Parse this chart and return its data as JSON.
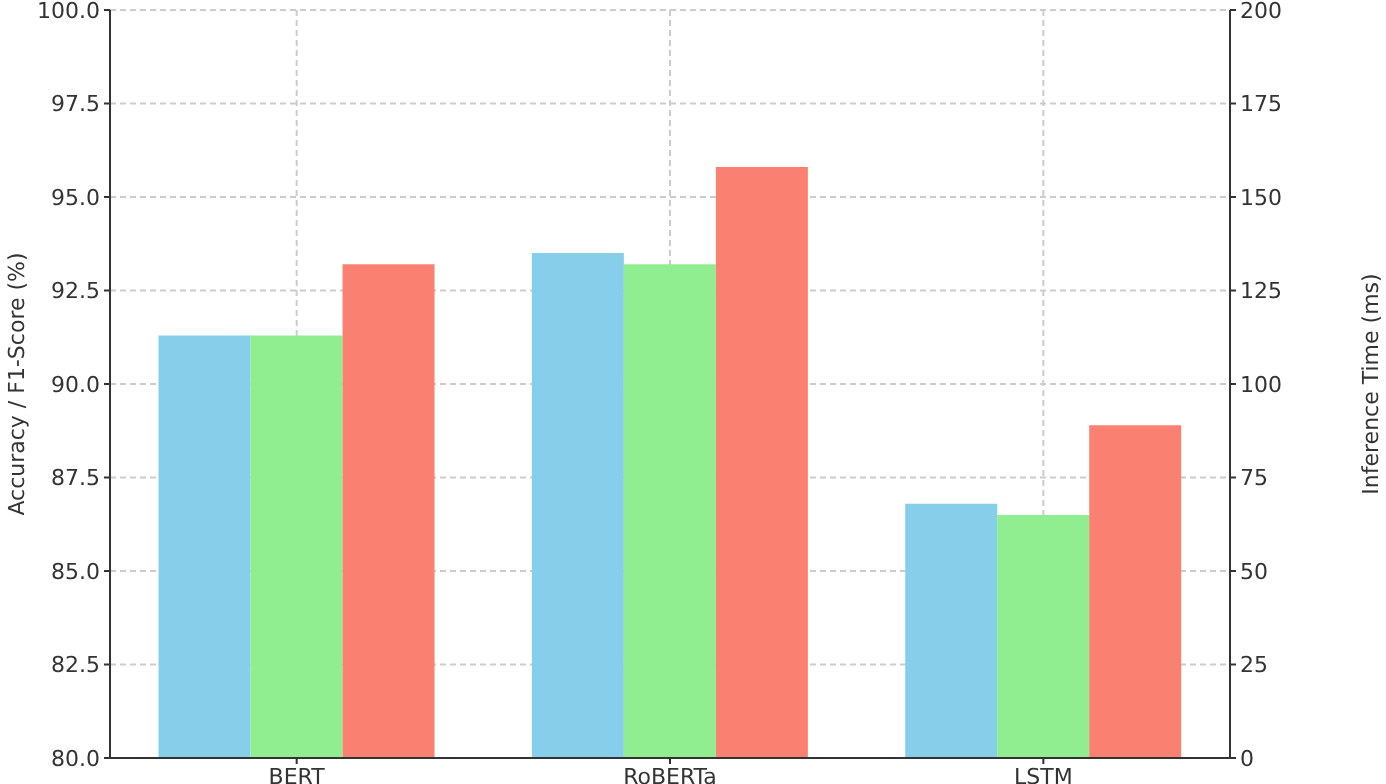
{
  "chart_data": {
    "type": "bar",
    "categories": [
      "BERT",
      "RoBERTa",
      "LSTM"
    ],
    "ylabel": "Accuracy / F1-Score (%)",
    "y2label": "Inference Time (ms)",
    "series": [
      {
        "color": "#87ceeb",
        "values": [
          91.3,
          93.5,
          86.8
        ]
      },
      {
        "color": "#90ee90",
        "values": [
          91.3,
          93.2,
          86.5
        ]
      },
      {
        "color": "#fa8072",
        "values": [
          132,
          158,
          89
        ],
        "axis": "y2"
      }
    ],
    "ylim": [
      80,
      100
    ],
    "yticks": [
      {
        "value": 80,
        "label": "80.0"
      },
      {
        "value": 82.5,
        "label": "82.5"
      },
      {
        "value": 85,
        "label": "85.0"
      },
      {
        "value": 87.5,
        "label": "87.5"
      },
      {
        "value": 90,
        "label": "90.0"
      },
      {
        "value": 92.5,
        "label": "92.5"
      },
      {
        "value": 95,
        "label": "95.0"
      },
      {
        "value": 97.5,
        "label": "97.5"
      },
      {
        "value": 100,
        "label": "100.0"
      }
    ],
    "y2lim": [
      0,
      200
    ],
    "y2ticks": [
      0,
      25,
      50,
      75,
      100,
      125,
      150,
      175,
      200
    ],
    "grid": true,
    "legend": false
  }
}
